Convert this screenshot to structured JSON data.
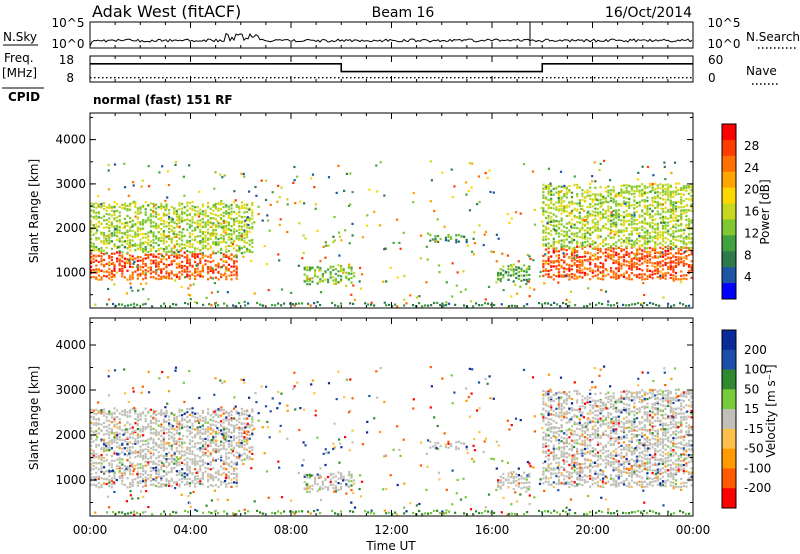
{
  "header": {
    "station": "Adak West (fitACF)",
    "beam": "Beam 16",
    "date": "16/Oct/2014"
  },
  "panels": {
    "nsky": {
      "label": "N.Sky",
      "right_label": "N.Search",
      "yticks_left": [
        "10^5",
        "10^0"
      ],
      "yticks_right": [
        "10^5",
        "10^0"
      ]
    },
    "freq": {
      "label": "Freq.",
      "unit": "[MHz]",
      "yticks_left": [
        "18",
        "8"
      ],
      "yticks_right": [
        "60",
        "0"
      ],
      "right_label": "Nave"
    },
    "cpid": {
      "label": "CPID",
      "text": "normal (fast) 151 RF"
    }
  },
  "chart_data": [
    {
      "type": "line",
      "name": "frequency",
      "x": [
        0,
        10,
        10,
        18,
        18,
        24
      ],
      "y": [
        15,
        15,
        12,
        12,
        15,
        15
      ],
      "xlim": [
        0,
        24
      ],
      "ylim": [
        8,
        18
      ]
    },
    {
      "type": "line",
      "name": "nave",
      "x": [
        0,
        24
      ],
      "y": [
        10,
        10
      ],
      "xlim": [
        0,
        24
      ],
      "ylim": [
        0,
        60
      ]
    },
    {
      "type": "heatmap",
      "name": "power",
      "xlabel": "",
      "ylabel": "Slant Range [km]",
      "xlim": [
        0,
        24
      ],
      "ylim": [
        200,
        4600
      ],
      "yticks": [
        "1000",
        "2000",
        "3000",
        "4000"
      ],
      "colorbar_label": "Power [dB]",
      "colorbar_ticks": [
        "28",
        "24",
        "20",
        "16",
        "12",
        "8",
        "4"
      ],
      "colorbar_colors": [
        "#0000ff",
        "#1d55a5",
        "#2f7a4a",
        "#41a040",
        "#7fc832",
        "#c8d820",
        "#ffd700",
        "#ffa500",
        "#ff7000",
        "#ff3c00",
        "#ff0000"
      ],
      "regions": [
        {
          "x0": 0,
          "x1": 5.8,
          "y0": 900,
          "y1": 1450,
          "power": 26
        },
        {
          "x0": 0,
          "x1": 6.5,
          "y0": 1500,
          "y1": 2600,
          "power": 14
        },
        {
          "x0": 8.5,
          "x1": 10.5,
          "y0": 800,
          "y1": 1200,
          "power": 12
        },
        {
          "x0": 13.5,
          "x1": 15,
          "y0": 1750,
          "y1": 1850,
          "power": 8
        },
        {
          "x0": 16.2,
          "x1": 17.5,
          "y0": 850,
          "y1": 1200,
          "power": 10
        },
        {
          "x0": 18,
          "x1": 24,
          "y0": 900,
          "y1": 1600,
          "power": 26
        },
        {
          "x0": 18,
          "x1": 24,
          "y0": 1600,
          "y1": 3000,
          "power": 14
        }
      ]
    },
    {
      "type": "heatmap",
      "name": "velocity",
      "xlabel": "Time UT",
      "ylabel": "Slant Range [km]",
      "xlim": [
        0,
        24
      ],
      "ylim": [
        200,
        4600
      ],
      "xticks": [
        "00:00",
        "04:00",
        "08:00",
        "12:00",
        "16:00",
        "20:00",
        "00:00"
      ],
      "yticks": [
        "1000",
        "2000",
        "3000",
        "4000"
      ],
      "colorbar_label": "Velocity [m s⁻¹]",
      "colorbar_ticks": [
        "200",
        "100",
        "50",
        "15",
        "-15",
        "-50",
        "-100",
        "-200"
      ],
      "colorbar_colors": [
        "#ff0000",
        "#ff5a00",
        "#ff9a00",
        "#ffc04a",
        "#c0c0b8",
        "#78cc3c",
        "#2f8a2f",
        "#1d4ea8",
        "#0a2a9a"
      ]
    }
  ]
}
